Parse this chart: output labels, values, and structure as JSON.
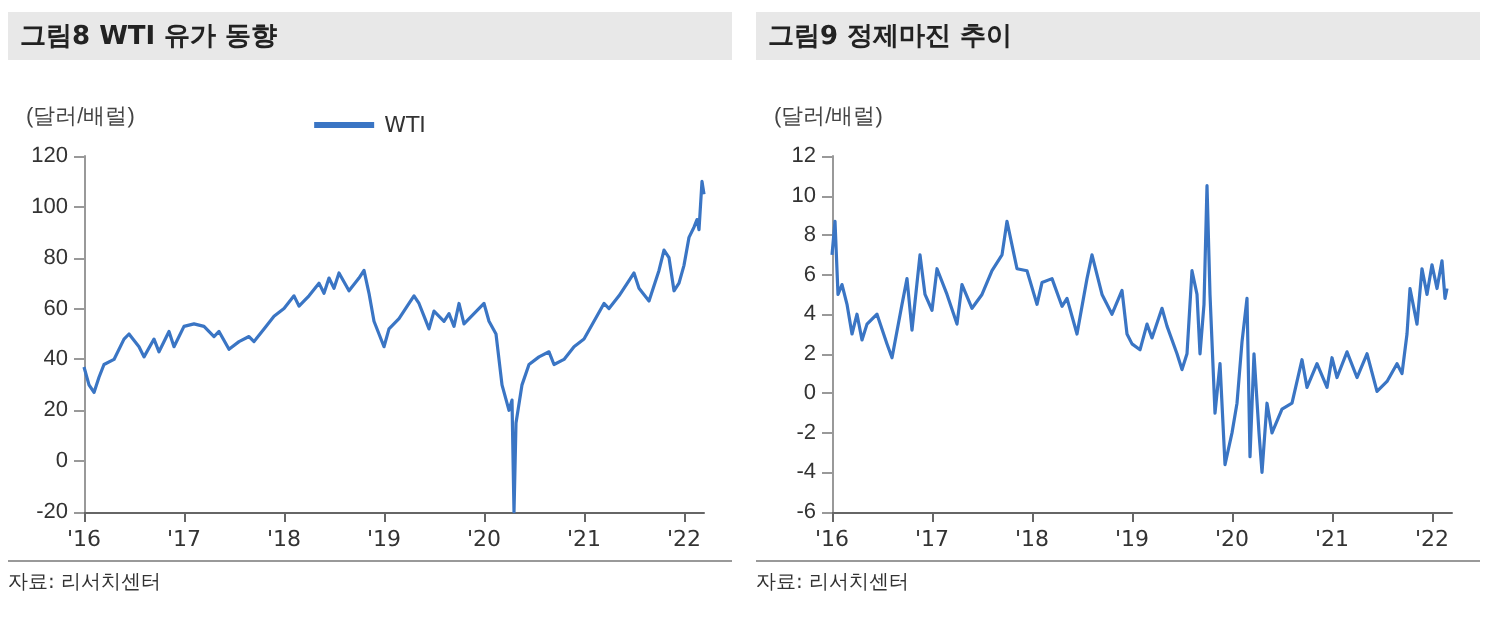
{
  "chart_data": [
    {
      "type": "line",
      "title": "그림8 WTI 유가 동향",
      "ylabel": "(달러/배럴)",
      "legend": "top",
      "grid": false,
      "marker": "none",
      "line_style": "solid",
      "annotations": [
        "자료: 리서치센터"
      ],
      "xlim": [
        2016,
        2022.2
      ],
      "xticks": [
        {
          "value": 2016,
          "label": "'16"
        },
        {
          "value": 2017,
          "label": "'17"
        },
        {
          "value": 2018,
          "label": "'18"
        },
        {
          "value": 2019,
          "label": "'19"
        },
        {
          "value": 2020,
          "label": "'20"
        },
        {
          "value": 2021,
          "label": "'21"
        },
        {
          "value": 2022,
          "label": "'22"
        }
      ],
      "ylim": [
        -20,
        120
      ],
      "yticks": [
        -20,
        0,
        20,
        40,
        60,
        80,
        100,
        120
      ],
      "x": [
        2016,
        2016.05,
        2016.1,
        2016.15,
        2016.2,
        2016.3,
        2016.4,
        2016.45,
        2016.55,
        2016.6,
        2016.7,
        2016.75,
        2016.85,
        2016.9,
        2017,
        2017.1,
        2017.2,
        2017.3,
        2017.35,
        2017.45,
        2017.55,
        2017.65,
        2017.7,
        2017.8,
        2017.9,
        2018,
        2018.1,
        2018.15,
        2018.25,
        2018.35,
        2018.4,
        2018.45,
        2018.5,
        2018.55,
        2018.65,
        2018.75,
        2018.8,
        2018.85,
        2018.9,
        2018.95,
        2019,
        2019.05,
        2019.15,
        2019.25,
        2019.3,
        2019.35,
        2019.4,
        2019.45,
        2019.5,
        2019.6,
        2019.65,
        2019.7,
        2019.75,
        2019.8,
        2019.9,
        2020,
        2020.05,
        2020.12,
        2020.18,
        2020.25,
        2020.28,
        2020.3,
        2020.32,
        2020.38,
        2020.45,
        2020.55,
        2020.65,
        2020.7,
        2020.8,
        2020.9,
        2021,
        2021.1,
        2021.2,
        2021.25,
        2021.35,
        2021.45,
        2021.5,
        2021.55,
        2021.65,
        2021.75,
        2021.8,
        2021.85,
        2021.9,
        2021.95,
        2022,
        2022.05,
        2022.1,
        2022.13,
        2022.15,
        2022.18,
        2022.2
      ],
      "series": [
        {
          "name": "WTI",
          "color": "#3a75c4",
          "values": [
            37,
            30,
            27,
            33,
            38,
            40,
            48,
            50,
            45,
            41,
            48,
            43,
            51,
            45,
            53,
            54,
            53,
            49,
            51,
            44,
            47,
            49,
            47,
            52,
            57,
            60,
            65,
            61,
            65,
            70,
            66,
            72,
            68,
            74,
            67,
            72,
            75,
            66,
            55,
            50,
            45,
            52,
            56,
            62,
            65,
            62,
            57,
            52,
            59,
            55,
            58,
            53,
            62,
            54,
            58,
            62,
            55,
            50,
            30,
            20,
            24,
            -20,
            15,
            30,
            38,
            41,
            43,
            38,
            40,
            45,
            48,
            55,
            62,
            60,
            65,
            71,
            74,
            68,
            63,
            75,
            83,
            80,
            67,
            70,
            77,
            88,
            92,
            95,
            91,
            110,
            105
          ]
        }
      ]
    },
    {
      "type": "line",
      "title": "그림9 정제마진 추이",
      "ylabel": "(달러/배럴)",
      "grid": false,
      "marker": "none",
      "line_style": "solid",
      "annotations": [
        "자료: 리서치센터"
      ],
      "xlim": [
        2016,
        2022.2
      ],
      "xticks": [
        {
          "value": 2016,
          "label": "'16"
        },
        {
          "value": 2017,
          "label": "'17"
        },
        {
          "value": 2018,
          "label": "'18"
        },
        {
          "value": 2019,
          "label": "'19"
        },
        {
          "value": 2020,
          "label": "'20"
        },
        {
          "value": 2021,
          "label": "'21"
        },
        {
          "value": 2022,
          "label": "'22"
        }
      ],
      "ylim": [
        -6,
        12
      ],
      "yticks": [
        -6,
        -4,
        -2,
        0,
        2,
        4,
        6,
        8,
        10,
        12
      ],
      "x": [
        2016,
        2016.03,
        2016.06,
        2016.1,
        2016.15,
        2016.2,
        2016.25,
        2016.3,
        2016.35,
        2016.45,
        2016.55,
        2016.6,
        2016.7,
        2016.75,
        2016.8,
        2016.88,
        2016.93,
        2017,
        2017.05,
        2017.15,
        2017.25,
        2017.3,
        2017.4,
        2017.5,
        2017.6,
        2017.7,
        2017.75,
        2017.85,
        2017.95,
        2018.05,
        2018.1,
        2018.2,
        2018.3,
        2018.35,
        2018.45,
        2018.55,
        2018.6,
        2018.7,
        2018.8,
        2018.9,
        2018.95,
        2019,
        2019.08,
        2019.15,
        2019.2,
        2019.3,
        2019.35,
        2019.45,
        2019.5,
        2019.55,
        2019.6,
        2019.65,
        2019.68,
        2019.72,
        2019.75,
        2019.78,
        2019.83,
        2019.88,
        2019.93,
        2020,
        2020.05,
        2020.1,
        2020.15,
        2020.18,
        2020.22,
        2020.27,
        2020.3,
        2020.35,
        2020.4,
        2020.5,
        2020.6,
        2020.7,
        2020.75,
        2020.85,
        2020.95,
        2021,
        2021.05,
        2021.15,
        2021.25,
        2021.35,
        2021.45,
        2021.55,
        2021.65,
        2021.7,
        2021.75,
        2021.78,
        2021.85,
        2021.9,
        2021.95,
        2022,
        2022.05,
        2022.1,
        2022.13,
        2022.15
      ],
      "series": [
        {
          "color": "#3a75c4",
          "values": [
            7,
            8.7,
            5,
            5.5,
            4.5,
            3,
            4,
            2.7,
            3.5,
            4,
            2.5,
            1.8,
            4.5,
            5.8,
            3.2,
            7,
            5,
            4.2,
            6.3,
            5,
            3.5,
            5.5,
            4.3,
            5,
            6.2,
            7,
            8.7,
            6.3,
            6.2,
            4.5,
            5.6,
            5.8,
            4.4,
            4.8,
            3,
            5.8,
            7,
            5,
            4,
            5.2,
            3,
            2.5,
            2.2,
            3.5,
            2.8,
            4.3,
            3.4,
            2,
            1.2,
            2,
            6.2,
            5,
            2,
            4.5,
            10.5,
            5,
            -1,
            1.5,
            -3.6,
            -2,
            -0.5,
            2.6,
            4.8,
            -3.2,
            2,
            -2,
            -4,
            -0.5,
            -2,
            -0.8,
            -0.5,
            1.7,
            0.3,
            1.5,
            0.3,
            1.8,
            0.8,
            2.1,
            0.8,
            2,
            0.1,
            0.6,
            1.5,
            1,
            3,
            5.3,
            3.5,
            6.3,
            5,
            6.5,
            5.3,
            6.7,
            4.8,
            5.3
          ]
        }
      ]
    }
  ]
}
